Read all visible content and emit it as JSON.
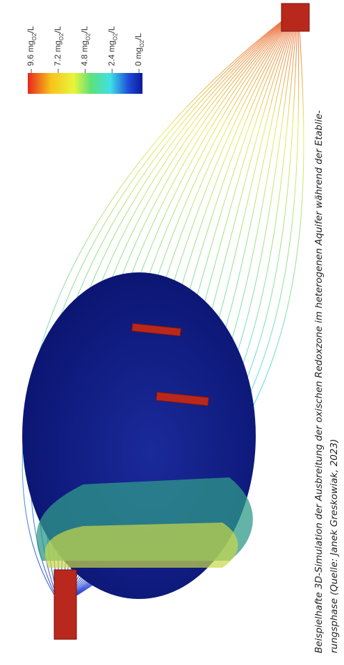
{
  "colorbar": {
    "sub": "O2",
    "tail": "/L",
    "ticks": [
      "9.6 mg",
      "7.2 mg",
      "4.8 mg",
      "2.4 mg",
      "0 mg"
    ]
  },
  "caption": {
    "lines": [
      "Beispielhafte 3D-Simulation der Ausbreitung der oxischen Redoxzone im heterogenen Aquifer während der Etablie-",
      "rungsphase (Quelle: Janek Greskowiak, 2023)"
    ]
  }
}
